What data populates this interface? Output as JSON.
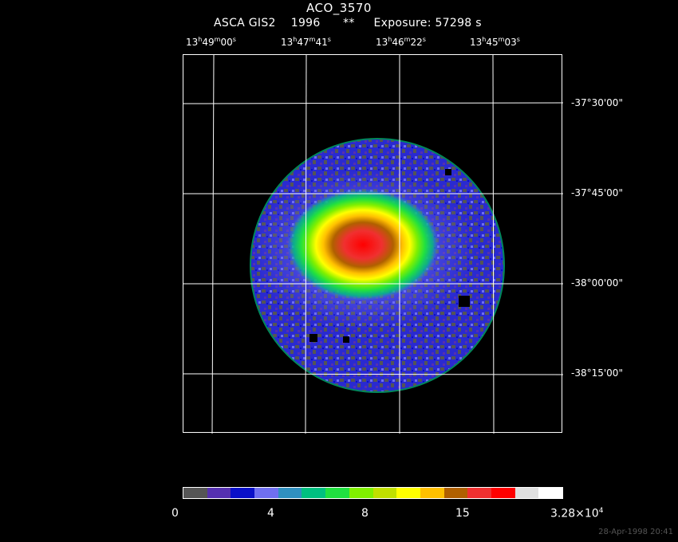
{
  "header": {
    "title": "ACO_3570",
    "instrument": "ASCA GIS2",
    "year": "1996",
    "stars": "**",
    "exposure": "Exposure: 57298 s"
  },
  "axes": {
    "ra_ticks": [
      {
        "h": "13",
        "m": "49",
        "s": "00"
      },
      {
        "h": "13",
        "m": "47",
        "s": "41"
      },
      {
        "h": "13",
        "m": "46",
        "s": "22"
      },
      {
        "h": "13",
        "m": "45",
        "s": "03"
      }
    ],
    "dec_ticks": [
      "-37°30'00\"",
      "-37°45'00\"",
      "-38°00'00\"",
      "-38°15'00\""
    ]
  },
  "colorbar": {
    "colors": [
      "#555555",
      "#5530b0",
      "#0a10c8",
      "#6f6ff0",
      "#3090c0",
      "#00c080",
      "#20e040",
      "#80f000",
      "#c0e000",
      "#ffff00",
      "#ffc000",
      "#b06000",
      "#f03030",
      "#ff0000",
      "#e0e0e0",
      "#ffffff"
    ],
    "labels": [
      "0",
      "4",
      "8",
      "15"
    ],
    "max_label": "3.28×10",
    "max_exp": "4"
  },
  "footer": {
    "datestamp": "28-Apr-1998 20:41"
  }
}
